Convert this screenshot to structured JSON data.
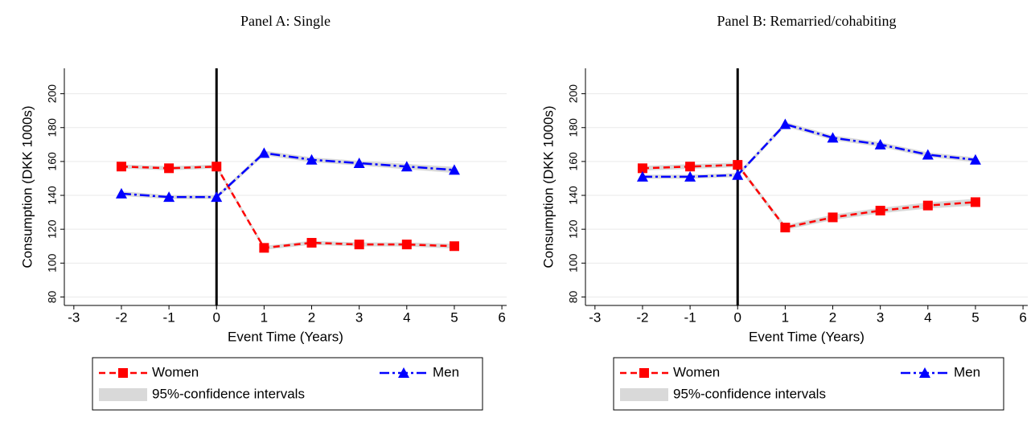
{
  "chart_data": [
    {
      "type": "line",
      "title": "Panel A: Single",
      "xlabel": "Event Time (Years)",
      "ylabel": "Consumption (DKK 1000s)",
      "x": [
        -2,
        -1,
        0,
        1,
        2,
        3,
        4,
        5
      ],
      "series": [
        {
          "name": "Women",
          "color": "#ff0000",
          "dash": "dashed",
          "marker": "square",
          "values": [
            157,
            156,
            157,
            109,
            112,
            111,
            111,
            110
          ],
          "lower": [
            155.8,
            154.8,
            155.8,
            107.8,
            110.8,
            109.8,
            109.8,
            108.6
          ],
          "upper": [
            158.2,
            157.2,
            158.2,
            110.2,
            113.2,
            112.2,
            112.2,
            111.4
          ]
        },
        {
          "name": "Men",
          "color": "#0000ff",
          "dash": "dashdot",
          "marker": "triangle",
          "values": [
            141,
            139,
            139,
            165,
            161,
            159,
            157,
            155
          ],
          "lower": [
            139.6,
            137.8,
            137.8,
            163.6,
            159.6,
            157.6,
            155.4,
            153.2
          ],
          "upper": [
            142.4,
            140.2,
            140.2,
            166.4,
            162.4,
            160.4,
            158.6,
            156.8
          ]
        }
      ],
      "ci_label": "95%-confidence intervals",
      "ci_color": "#d9d9d9",
      "xlim": [
        -3.2,
        6.1
      ],
      "ylim": [
        75,
        215
      ],
      "xticks": [
        -3,
        -2,
        -1,
        0,
        1,
        2,
        3,
        4,
        5,
        6
      ],
      "yticks": [
        80,
        100,
        120,
        140,
        160,
        180,
        200
      ],
      "grid": true,
      "vline": 0
    },
    {
      "type": "line",
      "title": "Panel B: Remarried/cohabiting",
      "xlabel": "Event Time (Years)",
      "ylabel": "Consumption (DKK 1000s)",
      "x": [
        -2,
        -1,
        0,
        1,
        2,
        3,
        4,
        5
      ],
      "series": [
        {
          "name": "Women",
          "color": "#ff0000",
          "dash": "dashed",
          "marker": "square",
          "values": [
            156,
            157,
            158,
            121,
            127,
            131,
            134,
            136
          ],
          "lower": [
            154.6,
            155.6,
            156.6,
            119.6,
            125.4,
            129.4,
            132.2,
            134
          ],
          "upper": [
            157.4,
            158.4,
            159.4,
            122.4,
            128.6,
            132.6,
            135.8,
            138
          ]
        },
        {
          "name": "Men",
          "color": "#0000ff",
          "dash": "dashdot",
          "marker": "triangle",
          "values": [
            151,
            151,
            152,
            182,
            174,
            170,
            164,
            161
          ],
          "lower": [
            149.8,
            149.8,
            150.8,
            180.6,
            172.6,
            168.6,
            162.6,
            159.6
          ],
          "upper": [
            152.2,
            152.2,
            153.2,
            183.4,
            175.4,
            171.4,
            165.4,
            162.4
          ]
        }
      ],
      "ci_label": "95%-confidence intervals",
      "ci_color": "#d9d9d9",
      "xlim": [
        -3.2,
        6.1
      ],
      "ylim": [
        75,
        215
      ],
      "xticks": [
        -3,
        -2,
        -1,
        0,
        1,
        2,
        3,
        4,
        5,
        6
      ],
      "yticks": [
        80,
        100,
        120,
        140,
        160,
        180,
        200
      ],
      "grid": true,
      "vline": 0
    }
  ]
}
